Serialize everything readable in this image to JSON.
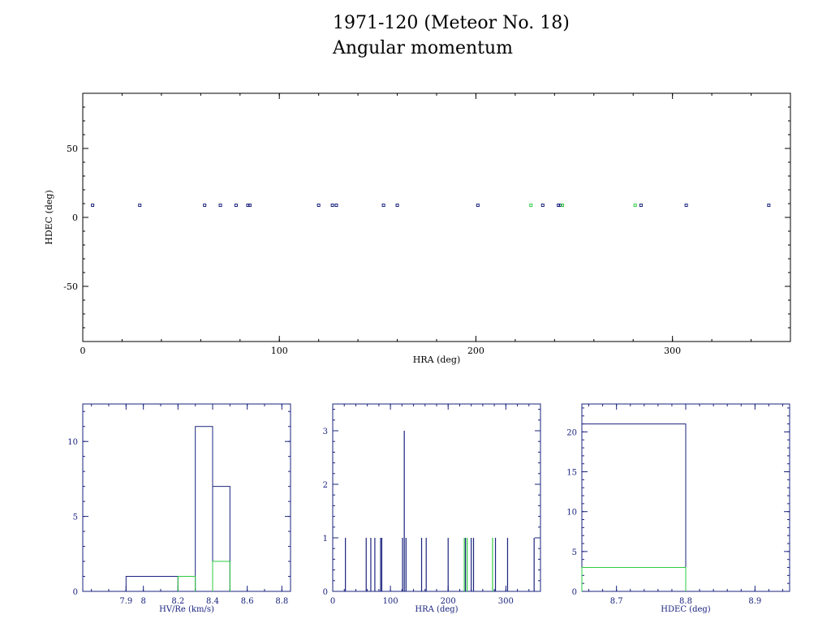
{
  "title_line1": "1971-120 (Meteor No. 18)",
  "title_line2": "Angular momentum",
  "colors": {
    "primary": "#1a237e",
    "secondary": "#2ecc40",
    "axis": "#000000"
  },
  "chart_data": [
    {
      "type": "scatter",
      "xlabel": "HRA (deg)",
      "ylabel": "HDEC (deg)",
      "xlim": [
        0,
        360
      ],
      "ylim": [
        -90,
        90
      ],
      "xticks": [
        0,
        100,
        200,
        300
      ],
      "yticks": [
        -50,
        0,
        50
      ],
      "series": [
        {
          "color": "#1a237e",
          "points": [
            [
              5,
              8.8
            ],
            [
              29,
              8.8
            ],
            [
              62,
              8.8
            ],
            [
              70,
              8.8
            ],
            [
              78,
              8.8
            ],
            [
              84,
              8.8
            ],
            [
              85,
              8.8
            ],
            [
              120,
              8.8
            ],
            [
              127,
              8.8
            ],
            [
              129,
              8.8
            ],
            [
              153,
              8.8
            ],
            [
              160,
              8.8
            ],
            [
              201,
              8.8
            ],
            [
              234,
              8.8
            ],
            [
              242,
              8.8
            ],
            [
              243,
              8.8
            ],
            [
              284,
              8.8
            ],
            [
              307,
              8.8
            ],
            [
              349,
              8.8
            ]
          ]
        },
        {
          "color": "#2ecc40",
          "points": [
            [
              228,
              8.8
            ],
            [
              244,
              8.8
            ],
            [
              281,
              8.8
            ]
          ]
        }
      ]
    },
    {
      "type": "bar",
      "xlabel": "HV/Re (km/s)",
      "xlim": [
        7.65,
        8.85
      ],
      "ylim": [
        0,
        12.5
      ],
      "xticks": [
        7.9,
        8,
        8.2,
        8.4,
        8.6,
        8.8
      ],
      "yticks": [
        0,
        5,
        10
      ],
      "series": [
        {
          "color": "#1a237e",
          "bins": [
            [
              7.9,
              8.2,
              1
            ],
            [
              8.3,
              8.4,
              11
            ],
            [
              8.4,
              8.5,
              7
            ]
          ]
        },
        {
          "color": "#2ecc40",
          "bins": [
            [
              8.2,
              8.3,
              1
            ],
            [
              8.4,
              8.5,
              2
            ]
          ]
        }
      ]
    },
    {
      "type": "bar",
      "xlabel": "HRA (deg)",
      "xlim": [
        0,
        360
      ],
      "ylim": [
        0,
        3.5
      ],
      "xticks": [
        0,
        100,
        200,
        300
      ],
      "yticks": [
        0,
        1,
        2,
        3
      ],
      "series": [
        {
          "color": "#1a237e",
          "spikes": [
            [
              22,
              1
            ],
            [
              58,
              1
            ],
            [
              66,
              1
            ],
            [
              73,
              1
            ],
            [
              83,
              1
            ],
            [
              85,
              1
            ],
            [
              121,
              1
            ],
            [
              124,
              3
            ],
            [
              127,
              1
            ],
            [
              154,
              1
            ],
            [
              162,
              1
            ],
            [
              200,
              1
            ],
            [
              230,
              1
            ],
            [
              240,
              1
            ],
            [
              244,
              1
            ],
            [
              282,
              1
            ],
            [
              303,
              1
            ],
            [
              349,
              1
            ]
          ]
        },
        {
          "color": "#2ecc40",
          "spikes": [
            [
              228,
              1
            ],
            [
              233,
              1
            ],
            [
              277,
              1
            ]
          ]
        }
      ]
    },
    {
      "type": "bar",
      "xlabel": "HDEC (deg)",
      "xlim": [
        8.65,
        8.95
      ],
      "ylim": [
        0,
        23.5
      ],
      "xticks": [
        8.7,
        8.8,
        8.9
      ],
      "yticks": [
        0,
        5,
        10,
        15,
        20
      ],
      "series": [
        {
          "color": "#1a237e",
          "bins": [
            [
              8.65,
              8.8,
              21
            ]
          ]
        },
        {
          "color": "#2ecc40",
          "bins": [
            [
              8.65,
              8.8,
              3
            ]
          ]
        }
      ]
    }
  ]
}
